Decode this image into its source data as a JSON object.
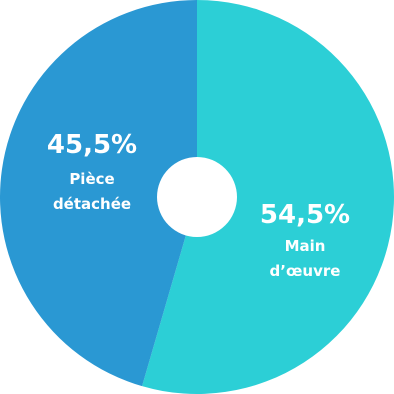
{
  "chart_data": {
    "type": "pie",
    "variant": "donut",
    "slices": [
      {
        "percent_label": "54,5%",
        "value": 54.5,
        "label_lines": [
          "Main",
          "d’œuvre"
        ],
        "color": "#2ccfd6"
      },
      {
        "percent_label": "45,5%",
        "value": 45.5,
        "label_lines": [
          "Pièce",
          "détachée"
        ],
        "color": "#2a98d3"
      }
    ]
  }
}
